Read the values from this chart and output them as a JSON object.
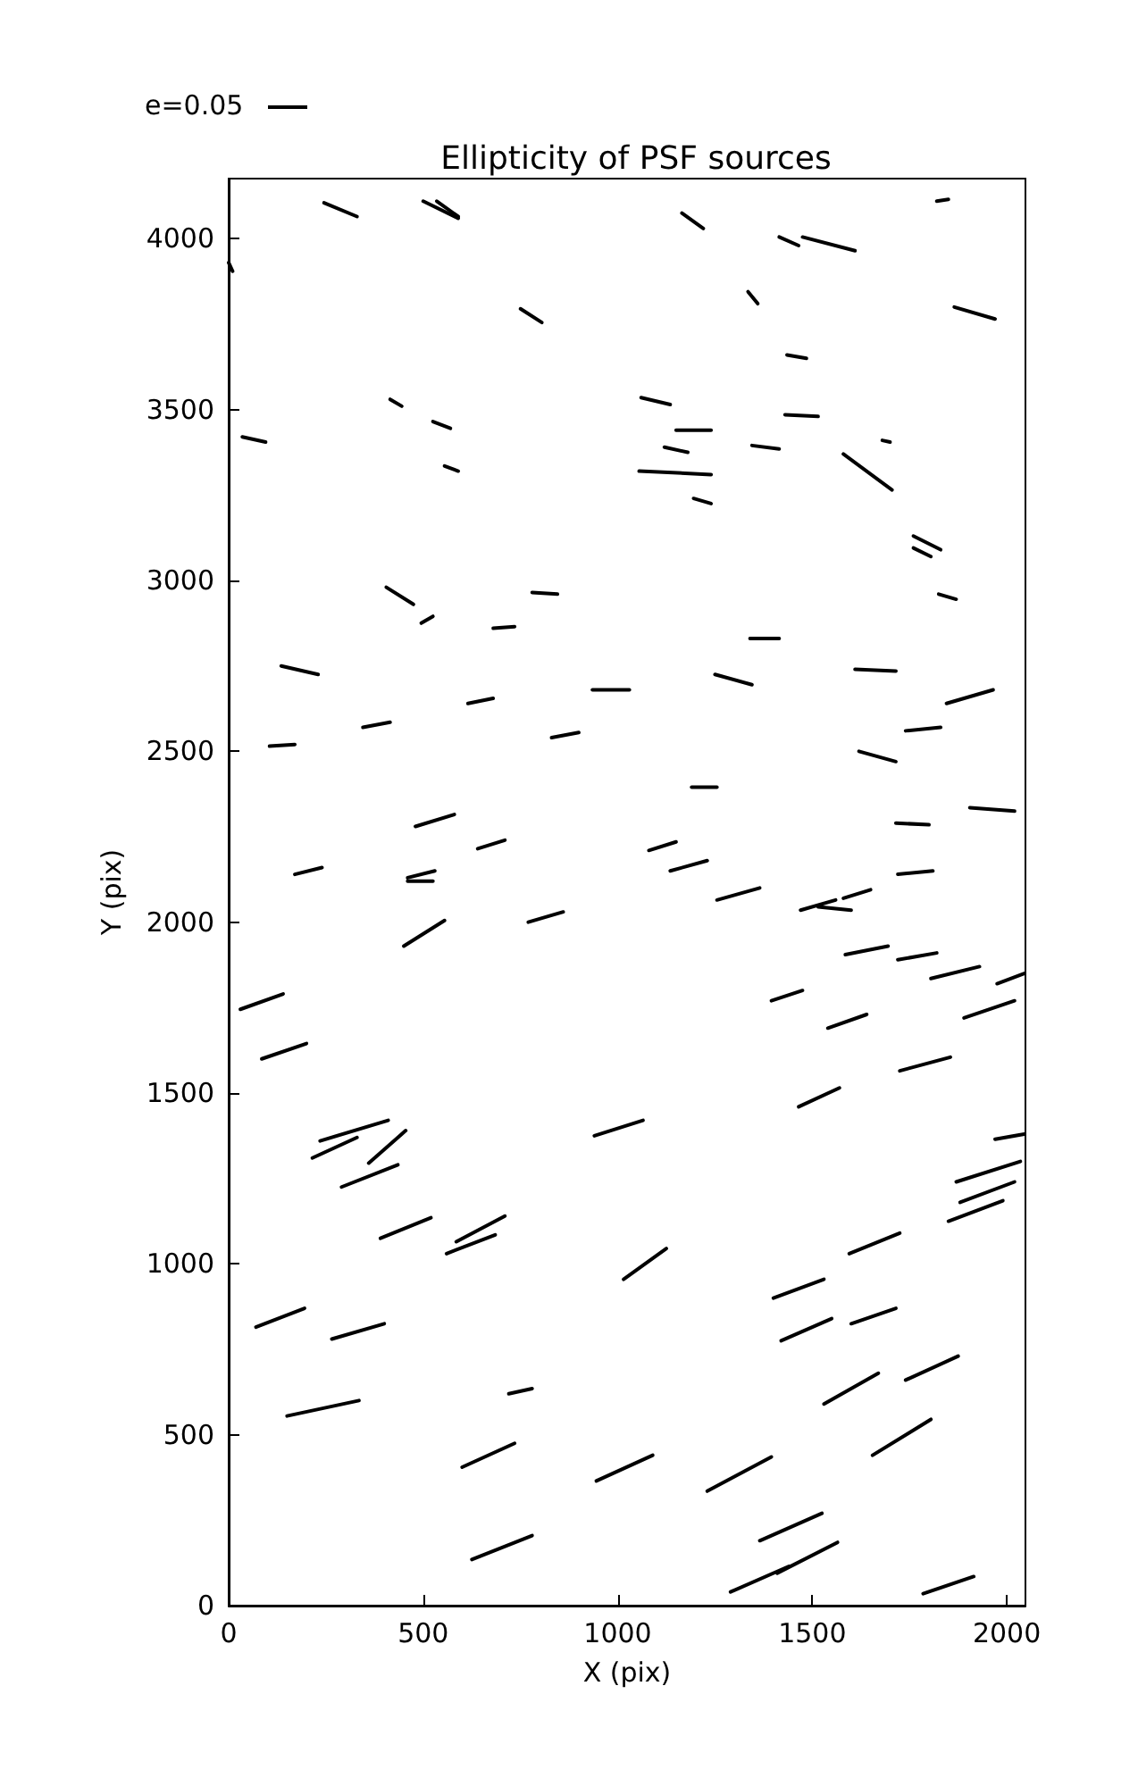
{
  "chart_data": {
    "type": "line",
    "title": "Ellipticity of PSF sources",
    "xlabel": "X (pix)",
    "ylabel": "Y (pix)",
    "annotations": [
      "e=0.05"
    ],
    "xlim": [
      0,
      2048
    ],
    "ylim": [
      0,
      4176
    ],
    "xticks": [
      0,
      500,
      1000,
      1500,
      2000
    ],
    "yticks": [
      0,
      500,
      1000,
      1500,
      2000,
      2500,
      3000,
      3500,
      4000
    ],
    "grid": false,
    "marker": "none",
    "line_style": "solid",
    "series": [
      {
        "color": "#000000",
        "x": [
          245,
          330
        ],
        "values": [
          4105,
          4065
        ]
      },
      {
        "color": "#000000",
        "x": [
          500,
          590
        ],
        "values": [
          4110,
          4060
        ]
      },
      {
        "color": "#000000",
        "x": [
          535,
          590
        ],
        "values": [
          4110,
          4065
        ]
      },
      {
        "color": "#000000",
        "x": [
          0,
          10
        ],
        "values": [
          3930,
          3905
        ]
      },
      {
        "color": "#000000",
        "x": [
          750,
          805
        ],
        "values": [
          3795,
          3755
        ]
      },
      {
        "color": "#000000",
        "x": [
          415,
          445
        ],
        "values": [
          3530,
          3510
        ]
      },
      {
        "color": "#000000",
        "x": [
          525,
          570
        ],
        "values": [
          3465,
          3445
        ]
      },
      {
        "color": "#000000",
        "x": [
          555,
          590
        ],
        "values": [
          3335,
          3320
        ]
      },
      {
        "color": "#000000",
        "x": [
          35,
          95
        ],
        "values": [
          3420,
          3405
        ]
      },
      {
        "color": "#000000",
        "x": [
          405,
          475
        ],
        "values": [
          2980,
          2930
        ]
      },
      {
        "color": "#000000",
        "x": [
          495,
          525
        ],
        "values": [
          2875,
          2895
        ]
      },
      {
        "color": "#000000",
        "x": [
          680,
          735
        ],
        "values": [
          2860,
          2865
        ]
      },
      {
        "color": "#000000",
        "x": [
          780,
          845
        ],
        "values": [
          2965,
          2960
        ]
      },
      {
        "color": "#000000",
        "x": [
          135,
          230
        ],
        "values": [
          2750,
          2725
        ]
      },
      {
        "color": "#000000",
        "x": [
          105,
          170
        ],
        "values": [
          2515,
          2520
        ]
      },
      {
        "color": "#000000",
        "x": [
          345,
          415
        ],
        "values": [
          2570,
          2585
        ]
      },
      {
        "color": "#000000",
        "x": [
          615,
          680
        ],
        "values": [
          2640,
          2655
        ]
      },
      {
        "color": "#000000",
        "x": [
          830,
          900
        ],
        "values": [
          2540,
          2555
        ]
      },
      {
        "color": "#000000",
        "x": [
          935,
          1030
        ],
        "values": [
          2680,
          2680
        ]
      },
      {
        "color": "#000000",
        "x": [
          1165,
          1220
        ],
        "values": [
          4075,
          4030
        ]
      },
      {
        "color": "#000000",
        "x": [
          1415,
          1465
        ],
        "values": [
          4005,
          3980
        ]
      },
      {
        "color": "#000000",
        "x": [
          1475,
          1610
        ],
        "values": [
          4005,
          3965
        ]
      },
      {
        "color": "#000000",
        "x": [
          1820,
          1850
        ],
        "values": [
          4110,
          4115
        ]
      },
      {
        "color": "#000000",
        "x": [
          1335,
          1360
        ],
        "values": [
          3845,
          3810
        ]
      },
      {
        "color": "#000000",
        "x": [
          1865,
          1970
        ],
        "values": [
          3800,
          3765
        ]
      },
      {
        "color": "#000000",
        "x": [
          1435,
          1485
        ],
        "values": [
          3660,
          3650
        ]
      },
      {
        "color": "#000000",
        "x": [
          1060,
          1135
        ],
        "values": [
          3535,
          3515
        ]
      },
      {
        "color": "#000000",
        "x": [
          1150,
          1240
        ],
        "values": [
          3440,
          3440
        ]
      },
      {
        "color": "#000000",
        "x": [
          1120,
          1180
        ],
        "values": [
          3390,
          3375
        ]
      },
      {
        "color": "#000000",
        "x": [
          1055,
          1240
        ],
        "values": [
          3320,
          3310
        ]
      },
      {
        "color": "#000000",
        "x": [
          1430,
          1515
        ],
        "values": [
          3485,
          3480
        ]
      },
      {
        "color": "#000000",
        "x": [
          1345,
          1415
        ],
        "values": [
          3395,
          3385
        ]
      },
      {
        "color": "#000000",
        "x": [
          1680,
          1700
        ],
        "values": [
          3410,
          3405
        ]
      },
      {
        "color": "#000000",
        "x": [
          1580,
          1705
        ],
        "values": [
          3370,
          3265
        ]
      },
      {
        "color": "#000000",
        "x": [
          1195,
          1240
        ],
        "values": [
          3240,
          3225
        ]
      },
      {
        "color": "#000000",
        "x": [
          1760,
          1830
        ],
        "values": [
          3130,
          3090
        ]
      },
      {
        "color": "#000000",
        "x": [
          1760,
          1805
        ],
        "values": [
          3095,
          3070
        ]
      },
      {
        "color": "#000000",
        "x": [
          1825,
          1870
        ],
        "values": [
          2960,
          2945
        ]
      },
      {
        "color": "#000000",
        "x": [
          1340,
          1415
        ],
        "values": [
          2830,
          2830
        ]
      },
      {
        "color": "#000000",
        "x": [
          480,
          580
        ],
        "values": [
          2280,
          2315
        ]
      },
      {
        "color": "#000000",
        "x": [
          640,
          710
        ],
        "values": [
          2215,
          2240
        ]
      },
      {
        "color": "#000000",
        "x": [
          170,
          240
        ],
        "values": [
          2140,
          2160
        ]
      },
      {
        "color": "#000000",
        "x": [
          460,
          530
        ],
        "values": [
          2130,
          2150
        ]
      },
      {
        "color": "#000000",
        "x": [
          460,
          525
        ],
        "values": [
          2120,
          2120
        ]
      },
      {
        "color": "#000000",
        "x": [
          450,
          555
        ],
        "values": [
          1930,
          2005
        ]
      },
      {
        "color": "#000000",
        "x": [
          770,
          860
        ],
        "values": [
          2000,
          2030
        ]
      },
      {
        "color": "#000000",
        "x": [
          30,
          140
        ],
        "values": [
          1745,
          1790
        ]
      },
      {
        "color": "#000000",
        "x": [
          85,
          200
        ],
        "values": [
          1600,
          1645
        ]
      },
      {
        "color": "#000000",
        "x": [
          235,
          410
        ],
        "values": [
          1360,
          1420
        ]
      },
      {
        "color": "#000000",
        "x": [
          360,
          455
        ],
        "values": [
          1295,
          1390
        ]
      },
      {
        "color": "#000000",
        "x": [
          940,
          1065
        ],
        "values": [
          1375,
          1420
        ]
      },
      {
        "color": "#000000",
        "x": [
          1250,
          1345
        ],
        "values": [
          2725,
          2695
        ]
      },
      {
        "color": "#000000",
        "x": [
          1610,
          1715
        ],
        "values": [
          2740,
          2735
        ]
      },
      {
        "color": "#000000",
        "x": [
          1845,
          1965
        ],
        "values": [
          2640,
          2680
        ]
      },
      {
        "color": "#000000",
        "x": [
          1740,
          1830
        ],
        "values": [
          2560,
          2570
        ]
      },
      {
        "color": "#000000",
        "x": [
          1620,
          1715
        ],
        "values": [
          2500,
          2470
        ]
      },
      {
        "color": "#000000",
        "x": [
          1190,
          1255
        ],
        "values": [
          2395,
          2395
        ]
      },
      {
        "color": "#000000",
        "x": [
          1715,
          1800
        ],
        "values": [
          2290,
          2285
        ]
      },
      {
        "color": "#000000",
        "x": [
          1905,
          2020
        ],
        "values": [
          2335,
          2325
        ]
      },
      {
        "color": "#000000",
        "x": [
          1080,
          1150
        ],
        "values": [
          2210,
          2235
        ]
      },
      {
        "color": "#000000",
        "x": [
          1135,
          1230
        ],
        "values": [
          2150,
          2180
        ]
      },
      {
        "color": "#000000",
        "x": [
          1255,
          1365
        ],
        "values": [
          2065,
          2100
        ]
      },
      {
        "color": "#000000",
        "x": [
          1470,
          1560
        ],
        "values": [
          2035,
          2065
        ]
      },
      {
        "color": "#000000",
        "x": [
          1515,
          1600
        ],
        "values": [
          2045,
          2035
        ]
      },
      {
        "color": "#000000",
        "x": [
          1580,
          1650
        ],
        "values": [
          2070,
          2095
        ]
      },
      {
        "color": "#000000",
        "x": [
          1720,
          1810
        ],
        "values": [
          2140,
          2150
        ]
      },
      {
        "color": "#000000",
        "x": [
          1585,
          1695
        ],
        "values": [
          1905,
          1930
        ]
      },
      {
        "color": "#000000",
        "x": [
          1720,
          1820
        ],
        "values": [
          1890,
          1910
        ]
      },
      {
        "color": "#000000",
        "x": [
          1805,
          1930
        ],
        "values": [
          1835,
          1870
        ]
      },
      {
        "color": "#000000",
        "x": [
          1975,
          2045
        ],
        "values": [
          1820,
          1850
        ]
      },
      {
        "color": "#000000",
        "x": [
          1395,
          1475
        ],
        "values": [
          1770,
          1800
        ]
      },
      {
        "color": "#000000",
        "x": [
          1540,
          1640
        ],
        "values": [
          1690,
          1730
        ]
      },
      {
        "color": "#000000",
        "x": [
          1890,
          2020
        ],
        "values": [
          1720,
          1770
        ]
      },
      {
        "color": "#000000",
        "x": [
          1725,
          1855
        ],
        "values": [
          1565,
          1605
        ]
      },
      {
        "color": "#000000",
        "x": [
          1465,
          1570
        ],
        "values": [
          1460,
          1515
        ]
      },
      {
        "color": "#000000",
        "x": [
          215,
          330
        ],
        "values": [
          1310,
          1370
        ]
      },
      {
        "color": "#000000",
        "x": [
          290,
          435
        ],
        "values": [
          1225,
          1290
        ]
      },
      {
        "color": "#000000",
        "x": [
          390,
          520
        ],
        "values": [
          1075,
          1135
        ]
      },
      {
        "color": "#000000",
        "x": [
          560,
          685
        ],
        "values": [
          1030,
          1085
        ]
      },
      {
        "color": "#000000",
        "x": [
          585,
          710
        ],
        "values": [
          1065,
          1140
        ]
      },
      {
        "color": "#000000",
        "x": [
          1015,
          1125
        ],
        "values": [
          955,
          1045
        ]
      },
      {
        "color": "#000000",
        "x": [
          70,
          195
        ],
        "values": [
          815,
          870
        ]
      },
      {
        "color": "#000000",
        "x": [
          265,
          400
        ],
        "values": [
          780,
          825
        ]
      },
      {
        "color": "#000000",
        "x": [
          150,
          335
        ],
        "values": [
          555,
          600
        ]
      },
      {
        "color": "#000000",
        "x": [
          720,
          780
        ],
        "values": [
          620,
          635
        ]
      },
      {
        "color": "#000000",
        "x": [
          600,
          735
        ],
        "values": [
          405,
          475
        ]
      },
      {
        "color": "#000000",
        "x": [
          945,
          1090
        ],
        "values": [
          365,
          440
        ]
      },
      {
        "color": "#000000",
        "x": [
          625,
          780
        ],
        "values": [
          135,
          205
        ]
      },
      {
        "color": "#000000",
        "x": [
          1970,
          2045
        ],
        "values": [
          1365,
          1380
        ]
      },
      {
        "color": "#000000",
        "x": [
          1870,
          2035
        ],
        "values": [
          1240,
          1300
        ]
      },
      {
        "color": "#000000",
        "x": [
          1880,
          2020
        ],
        "values": [
          1180,
          1240
        ]
      },
      {
        "color": "#000000",
        "x": [
          1850,
          1990
        ],
        "values": [
          1125,
          1185
        ]
      },
      {
        "color": "#000000",
        "x": [
          1595,
          1725
        ],
        "values": [
          1030,
          1090
        ]
      },
      {
        "color": "#000000",
        "x": [
          1400,
          1530
        ],
        "values": [
          900,
          955
        ]
      },
      {
        "color": "#000000",
        "x": [
          1420,
          1550
        ],
        "values": [
          775,
          840
        ]
      },
      {
        "color": "#000000",
        "x": [
          1600,
          1715
        ],
        "values": [
          825,
          870
        ]
      },
      {
        "color": "#000000",
        "x": [
          1530,
          1670
        ],
        "values": [
          590,
          680
        ]
      },
      {
        "color": "#000000",
        "x": [
          1740,
          1875
        ],
        "values": [
          660,
          730
        ]
      },
      {
        "color": "#000000",
        "x": [
          1655,
          1805
        ],
        "values": [
          440,
          545
        ]
      },
      {
        "color": "#000000",
        "x": [
          1230,
          1395
        ],
        "values": [
          335,
          435
        ]
      },
      {
        "color": "#000000",
        "x": [
          1365,
          1525
        ],
        "values": [
          190,
          270
        ]
      },
      {
        "color": "#000000",
        "x": [
          1290,
          1440
        ],
        "values": [
          40,
          115
        ]
      },
      {
        "color": "#000000",
        "x": [
          1410,
          1565
        ],
        "values": [
          95,
          185
        ]
      },
      {
        "color": "#000000",
        "x": [
          1785,
          1915
        ],
        "values": [
          35,
          85
        ]
      }
    ]
  }
}
